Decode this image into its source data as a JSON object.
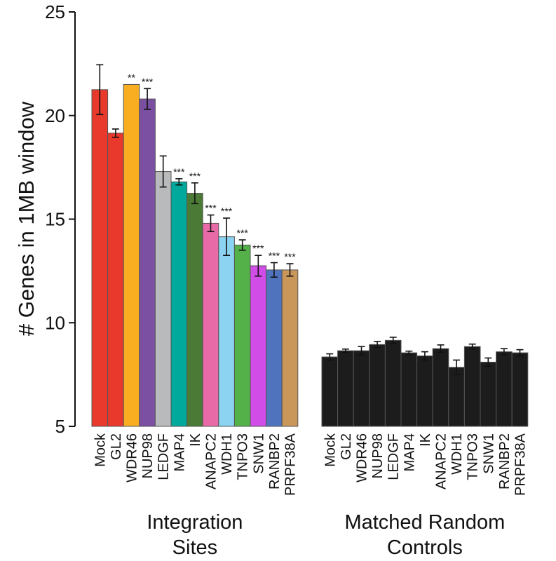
{
  "chart_data": {
    "type": "bar",
    "ylabel": "# Genes in 1MB window",
    "xlabel": "",
    "ylim": [
      5,
      25
    ],
    "yticks": [
      5,
      10,
      15,
      20,
      25
    ],
    "grid": false,
    "legend": "none",
    "bar_outline": "#555555",
    "groups": [
      {
        "label_lines": [
          "Integration",
          "Sites"
        ],
        "categories": [
          "Mock",
          "GL2",
          "WDR46",
          "NUP98",
          "LEDGF",
          "MAP4",
          "IK",
          "ANAPC2",
          "WDH1",
          "TNPO3",
          "SNW1",
          "RANBP2",
          "PRPF38A"
        ],
        "values": [
          21.25,
          19.15,
          21.5,
          20.8,
          17.3,
          16.8,
          16.25,
          14.8,
          14.15,
          13.75,
          12.75,
          12.55,
          12.55
        ],
        "errors": [
          1.2,
          0.2,
          0.0,
          0.5,
          0.75,
          0.15,
          0.5,
          0.4,
          0.9,
          0.25,
          0.5,
          0.35,
          0.3
        ],
        "significance": [
          "",
          "",
          "**",
          "***",
          "",
          "***",
          "***",
          "***",
          "***",
          "***",
          "***",
          "***",
          "***"
        ],
        "colors": [
          "#e8392c",
          "#e8392c",
          "#f9ae22",
          "#7b4fa1",
          "#b9babc",
          "#00a99c",
          "#4a7a36",
          "#e86aa6",
          "#8bd3f0",
          "#54b049",
          "#d14de8",
          "#4f74bd",
          "#c9975a"
        ]
      },
      {
        "label_lines": [
          "Matched Random",
          "Controls"
        ],
        "categories": [
          "Mock",
          "GL2",
          "WDR46",
          "NUP98",
          "LEDGF",
          "MAP4",
          "IK",
          "ANAPC2",
          "WDH1",
          "TNPO3",
          "SNW1",
          "RANBP2",
          "PRPF38A"
        ],
        "values": [
          8.35,
          8.65,
          8.65,
          8.95,
          9.15,
          8.55,
          8.4,
          8.75,
          7.85,
          8.85,
          8.1,
          8.6,
          8.55
        ],
        "errors": [
          0.15,
          0.08,
          0.2,
          0.15,
          0.15,
          0.08,
          0.2,
          0.18,
          0.35,
          0.12,
          0.2,
          0.15,
          0.15
        ],
        "significance": [
          "",
          "",
          "",
          "",
          "",
          "",
          "",
          "",
          "",
          "",
          "",
          "",
          ""
        ],
        "colors": [
          "#1c1c1c",
          "#1c1c1c",
          "#1c1c1c",
          "#1c1c1c",
          "#1c1c1c",
          "#1c1c1c",
          "#1c1c1c",
          "#1c1c1c",
          "#1c1c1c",
          "#1c1c1c",
          "#1c1c1c",
          "#1c1c1c",
          "#1c1c1c"
        ]
      }
    ]
  }
}
